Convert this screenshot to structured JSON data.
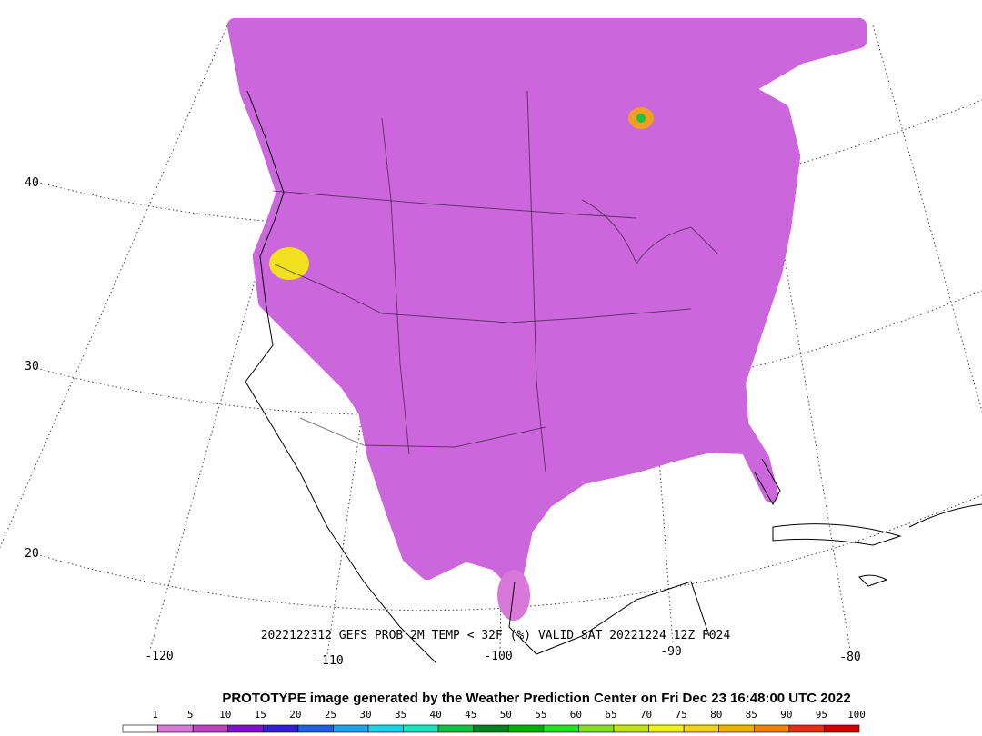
{
  "map": {
    "lat_labels": [
      40,
      30,
      20
    ],
    "lon_labels": [
      -120,
      -110,
      -100,
      -90,
      -80
    ],
    "caption": "2022122312 GEFS PROB 2M TEMP < 32F (%) VALID SAT 20221224 12Z F024"
  },
  "footer": "PROTOTYPE image generated by the Weather Prediction Center on Fri Dec 23 16:48:00 UTC 2022",
  "colorbar": {
    "values": [
      1,
      5,
      10,
      15,
      20,
      25,
      30,
      35,
      40,
      45,
      50,
      55,
      60,
      65,
      70,
      75,
      80,
      85,
      90,
      95,
      100
    ],
    "colors": [
      "#ffffff",
      "#d878d8",
      "#c040c0",
      "#8010d0",
      "#3020d0",
      "#2060e0",
      "#20a0f0",
      "#20d0e8",
      "#20e0c0",
      "#10c040",
      "#008020",
      "#00b000",
      "#20e020",
      "#80e020",
      "#c0e020",
      "#f0f020",
      "#f0d020",
      "#f0b000",
      "#f08000",
      "#e03010",
      "#d00000"
    ]
  }
}
